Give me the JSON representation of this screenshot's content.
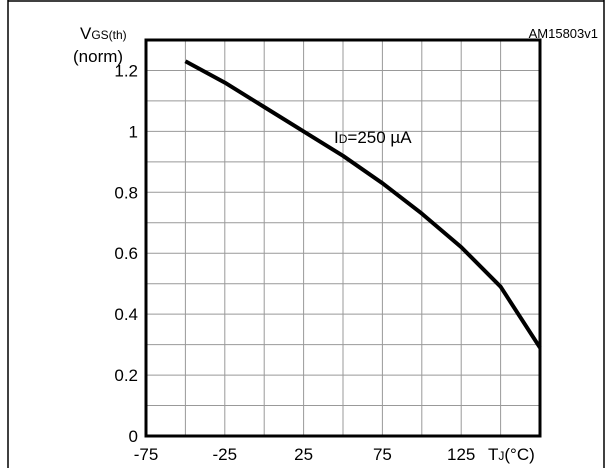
{
  "figure_id": "AM15803v1",
  "chart_data": {
    "type": "line",
    "ylabel_main": "V",
    "ylabel_sub": "GS(th)",
    "ylabel_unit": "(norm)",
    "xlabel_main": "T",
    "xlabel_sub": "J",
    "xlabel_unit": "(°C)",
    "annotation_main": "I",
    "annotation_sub": "D",
    "annotation_value": "=250 µA",
    "xlim": [
      -75,
      175
    ],
    "ylim": [
      0,
      1.3
    ],
    "x_ticks": [
      -75,
      -25,
      25,
      75,
      125
    ],
    "x_tick_labels": [
      "-75",
      "-25",
      "25",
      "75",
      "125"
    ],
    "y_ticks": [
      0,
      0.2,
      0.4,
      0.6,
      0.8,
      1,
      1.2
    ],
    "y_tick_labels": [
      "0",
      "0.2",
      "0.4",
      "0.6",
      "0.8",
      "1",
      "1.2"
    ],
    "grid": true,
    "series": [
      {
        "x": [
          -50,
          -25,
          0,
          25,
          50,
          75,
          100,
          125,
          150,
          175
        ],
        "y": [
          1.23,
          1.16,
          1.08,
          1.0,
          0.92,
          0.83,
          0.73,
          0.62,
          0.49,
          0.29
        ]
      }
    ]
  }
}
